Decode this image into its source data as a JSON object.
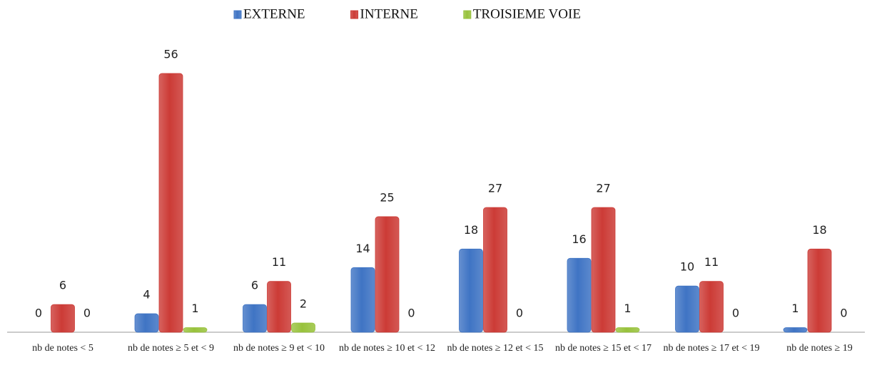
{
  "chart_data": {
    "type": "bar",
    "categories": [
      "nb de notes < 5",
      "nb de notes ≥ 5 et < 9",
      "nb de notes ≥ 9 et < 10",
      "nb de notes ≥ 10 et < 12",
      "nb de notes ≥ 12 et < 15",
      "nb de notes ≥ 15 et < 17",
      "nb de notes ≥ 17 et < 19",
      "nb de notes ≥ 19"
    ],
    "series": [
      {
        "name": "EXTERNE",
        "color": "#3f74c4",
        "values": [
          0,
          4,
          6,
          14,
          18,
          16,
          10,
          1
        ]
      },
      {
        "name": "INTERNE",
        "color": "#cc3b36",
        "values": [
          6,
          56,
          11,
          25,
          27,
          27,
          11,
          18
        ]
      },
      {
        "name": "TROISIEME VOIE",
        "color": "#98c23c",
        "values": [
          0,
          1,
          2,
          0,
          0,
          1,
          0,
          0
        ]
      }
    ],
    "legend": "top"
  }
}
